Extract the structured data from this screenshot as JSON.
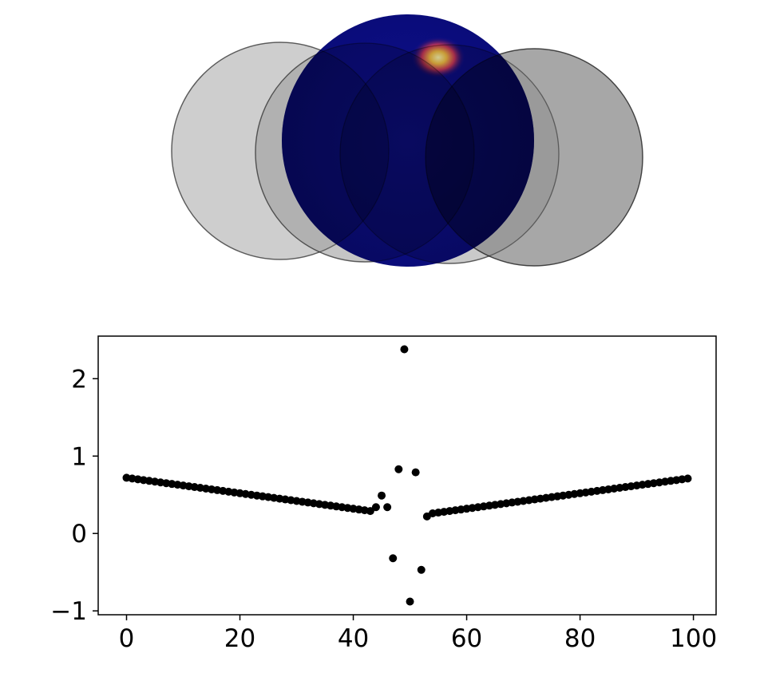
{
  "figure": {
    "top_panel": {
      "type": "overlapping circles",
      "center_image": "blue heatmap disc with one bright yellow spot near the top",
      "colors": {
        "disc_background": "#0d0f8c",
        "hot_spot_core": "#fff4a0",
        "hot_spot_mid": "#f5c044",
        "hot_spot_outer": "#c8375a",
        "gray_circle_light": "#bdbdbd",
        "gray_circle_dark": "#8a8a8a",
        "circle_edge": "#4d4d4d"
      }
    }
  },
  "chart_data": {
    "type": "scatter",
    "title": "",
    "xlabel": "",
    "ylabel": "",
    "xlim": [
      -5,
      104
    ],
    "ylim": [
      -1.05,
      2.55
    ],
    "xticks": [
      0,
      20,
      40,
      60,
      80,
      100
    ],
    "yticks": [
      -1,
      0,
      1,
      2
    ],
    "xtick_labels": [
      "0",
      "20",
      "40",
      "60",
      "80",
      "100"
    ],
    "ytick_labels": [
      "−1",
      "0",
      "1",
      "2"
    ],
    "grid": false,
    "marker_color": "#000000",
    "series": [
      {
        "x": [
          0,
          1,
          2,
          3,
          4,
          5,
          6,
          7,
          8,
          9,
          10,
          11,
          12,
          13,
          14,
          15,
          16,
          17,
          18,
          19,
          20,
          21,
          22,
          23,
          24,
          25,
          26,
          27,
          28,
          29,
          30,
          31,
          32,
          33,
          34,
          35,
          36,
          37,
          38,
          39,
          40,
          41,
          42,
          43,
          44,
          45,
          46,
          47,
          48,
          49,
          50,
          51,
          52,
          53,
          54,
          55,
          56,
          57,
          58,
          59,
          60,
          61,
          62,
          63,
          64,
          65,
          66,
          67,
          68,
          69,
          70,
          71,
          72,
          73,
          74,
          75,
          76,
          77,
          78,
          79,
          80,
          81,
          82,
          83,
          84,
          85,
          86,
          87,
          88,
          89,
          90,
          91,
          92,
          93,
          94,
          95,
          96,
          97,
          98,
          99
        ],
        "y": [
          0.72,
          0.71,
          0.7,
          0.69,
          0.68,
          0.67,
          0.66,
          0.65,
          0.64,
          0.63,
          0.62,
          0.61,
          0.6,
          0.59,
          0.58,
          0.57,
          0.56,
          0.55,
          0.54,
          0.53,
          0.52,
          0.51,
          0.5,
          0.49,
          0.48,
          0.47,
          0.46,
          0.45,
          0.44,
          0.43,
          0.42,
          0.41,
          0.4,
          0.39,
          0.38,
          0.37,
          0.36,
          0.35,
          0.34,
          0.33,
          0.32,
          0.31,
          0.3,
          0.29,
          0.34,
          0.49,
          0.34,
          -0.32,
          0.83,
          2.38,
          -0.88,
          0.79,
          -0.47,
          0.22,
          0.26,
          0.27,
          0.28,
          0.29,
          0.3,
          0.31,
          0.32,
          0.33,
          0.34,
          0.35,
          0.36,
          0.37,
          0.38,
          0.39,
          0.4,
          0.41,
          0.42,
          0.43,
          0.44,
          0.45,
          0.46,
          0.47,
          0.48,
          0.49,
          0.5,
          0.51,
          0.52,
          0.53,
          0.54,
          0.55,
          0.56,
          0.57,
          0.58,
          0.59,
          0.6,
          0.61,
          0.62,
          0.63,
          0.64,
          0.65,
          0.66,
          0.67,
          0.68,
          0.69,
          0.7,
          0.71
        ]
      }
    ]
  }
}
